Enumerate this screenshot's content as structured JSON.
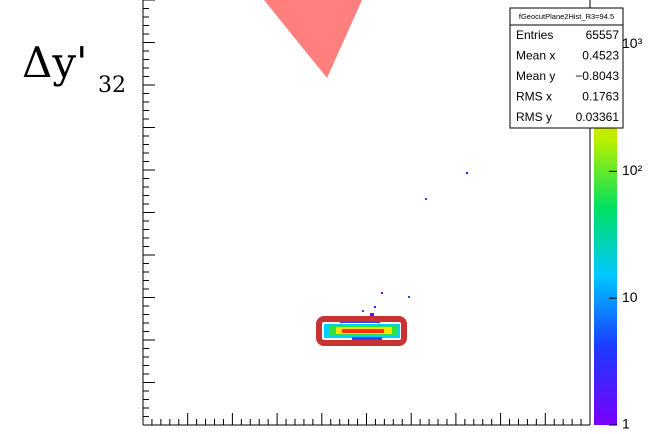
{
  "chart_data": {
    "type": "heatmap",
    "y_label": "Δy'",
    "y_label_subscript": "32",
    "stats": {
      "title": "fGeocutPlane2Hist_R3=94.5",
      "rows": [
        [
          "Entries",
          65557
        ],
        [
          "Mean x",
          0.4523
        ],
        [
          "Mean y",
          "−0.8043"
        ],
        [
          "RMS x",
          0.1763
        ],
        [
          "RMS y",
          0.03361
        ]
      ]
    },
    "zlog": true,
    "zlim": [
      1,
      1300
    ],
    "zticks": [
      1,
      10,
      {
        "value": 100,
        "label": "10²"
      },
      {
        "value": 1000,
        "label": "10³"
      }
    ]
  }
}
